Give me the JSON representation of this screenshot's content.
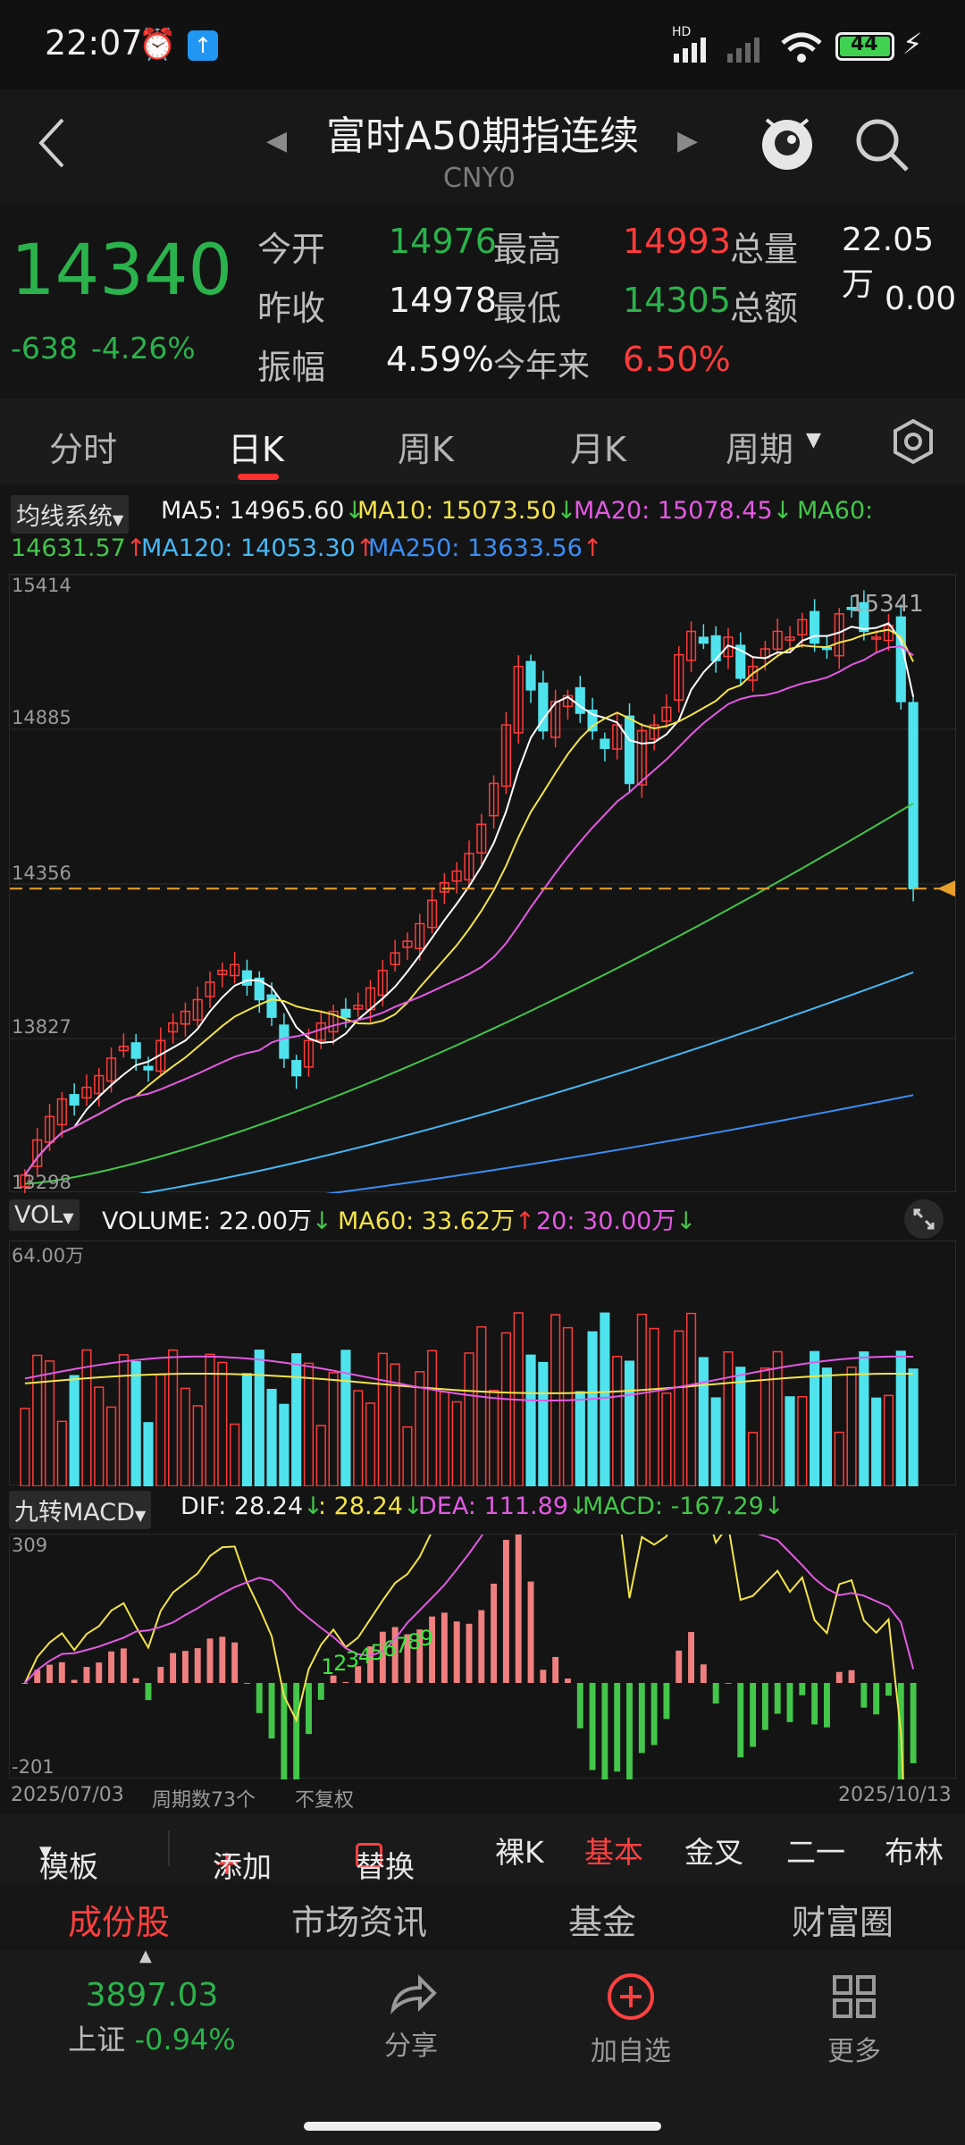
{
  "status_bar": {
    "time": "22:07",
    "battery": "44",
    "signal": "HD"
  },
  "header": {
    "title": "富时A50期指连续",
    "code": "CNY0"
  },
  "quote": {
    "price": "14340",
    "change": "-638",
    "change_pct": "-4.26%",
    "fields": [
      {
        "label": "今开",
        "value": "14976"
      },
      {
        "label": "最高",
        "value": "14993"
      },
      {
        "label": "总量",
        "value": "22.05万"
      },
      {
        "label": "昨收",
        "value": "14978"
      },
      {
        "label": "最低",
        "value": "14305"
      },
      {
        "label": "总额",
        "value": "0.00"
      },
      {
        "label": "振幅",
        "value": "4.59%"
      },
      {
        "label": "今年来",
        "value": "6.50%"
      }
    ]
  },
  "tabs": [
    "分时",
    "日K",
    "周K",
    "月K",
    "周期"
  ],
  "ma": {
    "label": "均线系统",
    "ma5": "MA5: 14965.60",
    "ma10": "MA10: 15073.50",
    "ma20": "MA20: 15078.45",
    "ma60_label": "MA60:",
    "ma60": "14631.57",
    "ma120": "MA120: 14053.30",
    "ma250": "MA250: 13633.56"
  },
  "price_axis": [
    "15414",
    "14885",
    "14356",
    "13827",
    "13298"
  ],
  "price_high_label": "15341",
  "vol": {
    "label": "VOL",
    "volume": "VOLUME: 22.00万",
    "ma60": "MA60: 33.62万",
    "ma20": "20: 30.00万",
    "max": "64.00万"
  },
  "macd": {
    "label": "九转MACD",
    "dif": "DIF: 28.24",
    "dif2": ": 28.24",
    "dea": "DEA: 111.89",
    "macd": "MACD: -167.29",
    "max": "309",
    "min": "-201",
    "nine_digits": [
      "1",
      "2",
      "3",
      "4",
      "5",
      "6",
      "7",
      "8",
      "9"
    ]
  },
  "date_bar": {
    "start": "2025/07/03",
    "period_count": "周期数73个",
    "adjust": "不复权",
    "end": "2025/10/13"
  },
  "toolbar": [
    "模板",
    "添加",
    "替换",
    "裸K",
    "基本",
    "金叉",
    "二一",
    "布林"
  ],
  "subtabs": [
    "成份股",
    "市场资讯",
    "基金",
    "财富圈"
  ],
  "bottom_nav": {
    "index_value": "3897.03",
    "index_label": "上证",
    "index_pct": "-0.94%",
    "items": [
      "分享",
      "加自选",
      "更多"
    ]
  },
  "colors": {
    "up": "#ff3b3b",
    "down": "#4fe3ee",
    "accent_green": "#2bb24c",
    "ma5": "#ffffff",
    "ma10": "#f3e34a",
    "ma20": "#e35ae3",
    "ma60": "#43c64a",
    "ma120": "#46b8f5",
    "ma250": "#3b8ef5"
  },
  "chart_data": {
    "type": "candlestick",
    "title": "",
    "ylim": [
      13298,
      15414
    ],
    "x_range": [
      "2025/07/03",
      "2025/10/13"
    ],
    "last_close": 14340,
    "ma_last": {
      "MA5": 14965.6,
      "MA10": 15073.5,
      "MA20": 15078.45,
      "MA60": 14631.57,
      "MA120": 14053.3,
      "MA250": 13633.56
    },
    "candles_approx_close": [
      13360,
      13480,
      13560,
      13620,
      13600,
      13660,
      13700,
      13760,
      13800,
      13760,
      13720,
      13820,
      13880,
      13920,
      13960,
      14020,
      14060,
      14080,
      14010,
      13960,
      13900,
      13760,
      13700,
      13820,
      13880,
      13920,
      13900,
      13940,
      14000,
      14060,
      14120,
      14160,
      14220,
      14300,
      14360,
      14400,
      14460,
      14560,
      14700,
      14900,
      15100,
      15020,
      14880,
      14980,
      15000,
      14940,
      14880,
      14820,
      14900,
      14700,
      14880,
      14900,
      14960,
      15140,
      15220,
      15180,
      15120,
      15200,
      15060,
      15100,
      15160,
      15220,
      15200,
      15260,
      15180,
      15160,
      15280,
      15300,
      15220,
      15200,
      15240,
      14980,
      14340
    ],
    "volume_last": "22.00万",
    "macd_last": {
      "DIF": 28.24,
      "DEA": 111.89,
      "MACD": -167.29
    }
  }
}
